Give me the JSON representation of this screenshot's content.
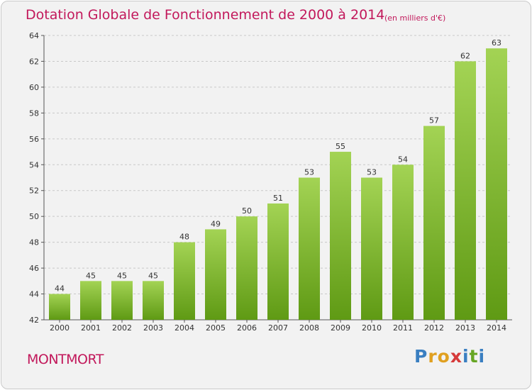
{
  "header": {
    "title": "Dotation Globale de Fonctionnement de 2000 à 2014",
    "unit_note": "(en milliers d'€)"
  },
  "footer": {
    "commune": "MONTMORT",
    "logo_letters": [
      "P",
      "r",
      "o",
      "x",
      "i",
      "t",
      "i"
    ],
    "logo_colors": [
      "#3a7fc1",
      "#e0a020",
      "#e0a020",
      "#d63a3a",
      "#3a7fc1",
      "#67a624",
      "#3a7fc1"
    ]
  },
  "colors": {
    "title": "#c2185b",
    "bar_light": "#a3d354",
    "bar_dark": "#5f9a14",
    "grid": "#c8c8c8",
    "background": "#f2f2f2"
  },
  "chart_data": {
    "type": "bar",
    "categories": [
      "2000",
      "2001",
      "2002",
      "2003",
      "2004",
      "2005",
      "2006",
      "2007",
      "2008",
      "2009",
      "2010",
      "2011",
      "2012",
      "2013",
      "2014"
    ],
    "values": [
      44,
      45,
      45,
      45,
      48,
      49,
      50,
      51,
      53,
      55,
      53,
      54,
      57,
      62,
      63
    ],
    "ylim": [
      42,
      64
    ],
    "yticks": [
      42,
      44,
      46,
      48,
      50,
      52,
      54,
      56,
      58,
      60,
      62,
      64
    ],
    "grid": "horizontal dashed",
    "legend": "none",
    "data_labels": "above bars"
  }
}
